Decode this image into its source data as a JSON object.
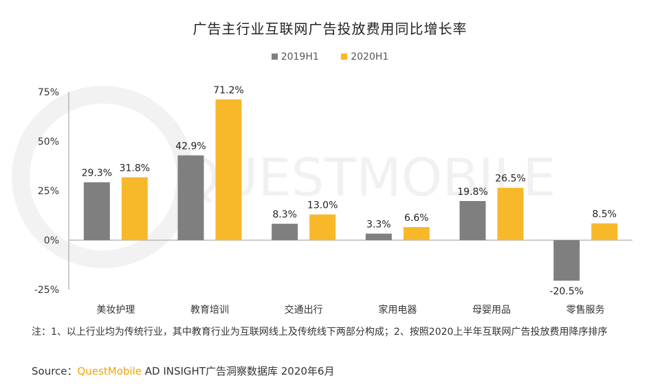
{
  "chart_data": {
    "type": "bar",
    "title": "广告主行业互联网广告投放费用同比增长率",
    "categories": [
      "美妆护理",
      "教育培训",
      "交通出行",
      "家用电器",
      "母婴用品",
      "零售服务"
    ],
    "series": [
      {
        "name": "2019H1",
        "color": "#7F7F7F",
        "values": [
          29.3,
          42.9,
          8.3,
          3.3,
          19.8,
          -20.5
        ],
        "labels": [
          "29.3%",
          "42.9%",
          "8.3%",
          "3.3%",
          "19.8%",
          "-20.5%"
        ]
      },
      {
        "name": "2020H1",
        "color": "#F7B829",
        "values": [
          31.8,
          71.2,
          13.0,
          6.6,
          26.5,
          8.5
        ],
        "labels": [
          "31.8%",
          "71.2%",
          "13.0%",
          "6.6%",
          "26.5%",
          "8.5%"
        ]
      }
    ],
    "ylim": [
      -25,
      75
    ],
    "yticks": [
      75,
      50,
      25,
      0,
      -25
    ],
    "ytick_labels": [
      "75%",
      "50%",
      "25%",
      "0%",
      "-25%"
    ],
    "xlabel": "",
    "ylabel": "",
    "legend_position": "top-center",
    "grid": false
  },
  "footnote": "注：1、以上行业均为传统行业，其中教育行业为互联网线上及传统线下两部分构成；2、按照2020上半年互联网广告投放费用降序排序",
  "source": {
    "prefix": "Source：",
    "brand": "QuestMobile",
    "rest": " AD INSIGHT广告洞察数据库 2020年6月"
  },
  "watermark": "QUESTMOBILE"
}
